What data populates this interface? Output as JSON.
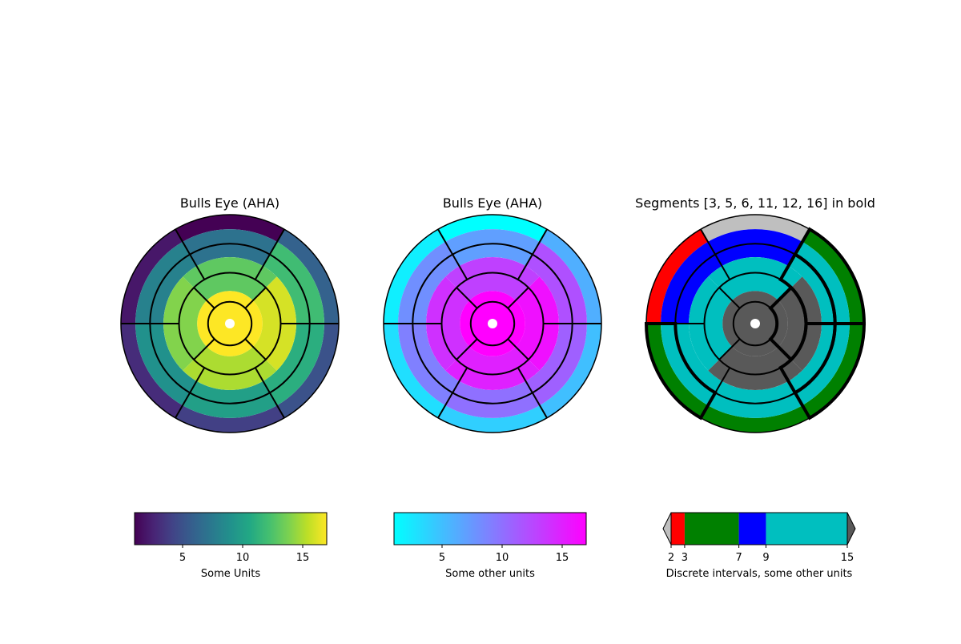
{
  "chart_data": [
    {
      "type": "polar-bullseye",
      "title": "Bulls Eye (AHA)",
      "segment_values": [
        1,
        2,
        3,
        4,
        5,
        6,
        7,
        8,
        9,
        10,
        11,
        12,
        13,
        14,
        15,
        16,
        17
      ],
      "colormap": "viridis",
      "norm": {
        "vmin": 1,
        "vmax": 17
      },
      "bold_segments": [],
      "colorbar": {
        "label": "Some Units",
        "ticks": [
          "5",
          "10",
          "15"
        ],
        "tick_values": [
          5,
          10,
          15
        ],
        "range": [
          1,
          17
        ]
      }
    },
    {
      "type": "polar-bullseye",
      "title": "Bulls Eye (AHA)",
      "segment_values": [
        1,
        2,
        3,
        4,
        5,
        6,
        7,
        8,
        9,
        10,
        11,
        12,
        13,
        14,
        15,
        16,
        17
      ],
      "colormap": "cool",
      "norm": {
        "vmin": 1,
        "vmax": 17
      },
      "bold_segments": [],
      "colorbar": {
        "label": "Some other units",
        "ticks": [
          "5",
          "10",
          "15"
        ],
        "tick_values": [
          5,
          10,
          15
        ],
        "range": [
          1,
          17
        ]
      }
    },
    {
      "type": "polar-bullseye",
      "title": "Segments [3, 5, 6, 11, 12, 16] in bold",
      "segment_values": [
        1,
        2,
        3,
        4,
        5,
        6,
        7,
        8,
        9,
        10,
        11,
        12,
        13,
        14,
        15,
        16,
        17
      ],
      "colormap": "discrete",
      "bounds": [
        2,
        3,
        7,
        9,
        15
      ],
      "interval_colors": [
        "#ff0000",
        "#008000",
        "#0000ff",
        "#00bfbf"
      ],
      "under_color": "#bfbfbf",
      "over_color": "#595959",
      "bold_segments": [
        3,
        5,
        6,
        11,
        12,
        16
      ],
      "colorbar": {
        "label": "Discrete intervals, some other units",
        "ticks": [
          "2",
          "3",
          "7",
          "9",
          "15"
        ],
        "tick_values": [
          2,
          3,
          7,
          9,
          15
        ],
        "range": [
          2,
          15
        ],
        "extend": "both"
      }
    }
  ]
}
